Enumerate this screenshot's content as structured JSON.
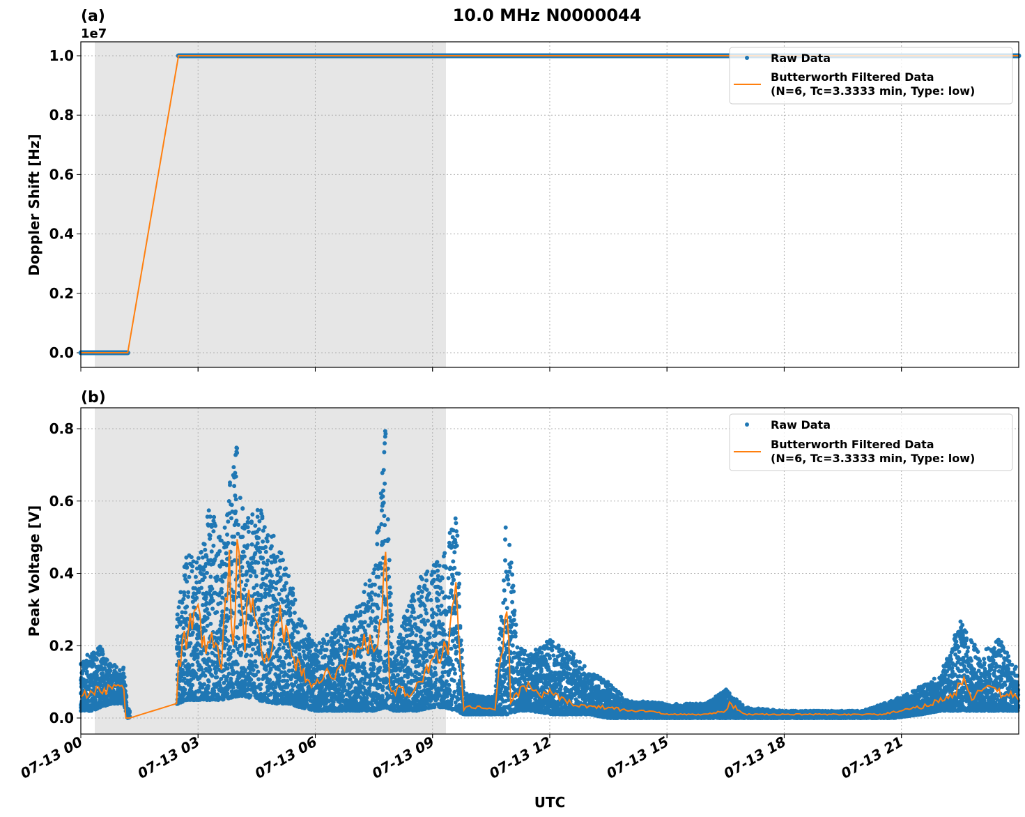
{
  "figure": {
    "title": "10.0 MHz N0000044",
    "xlabel": "UTC",
    "colors": {
      "raw": "#1f77b4",
      "filtered": "#ff7f0e",
      "shade": "#e6e6e6",
      "grid": "#b0b0b0"
    },
    "shaded_region_hours": [
      0.35,
      9.35
    ]
  },
  "chart_data": [
    {
      "panel_label": "(a)",
      "type": "line",
      "title": "",
      "xlabel": "",
      "ylabel": "Doppler Shift [Hz]",
      "y_offset_text": "1e7",
      "ylim": [
        -0.05,
        1.05
      ],
      "yticks": [
        "0.0",
        "0.2",
        "0.4",
        "0.6",
        "0.8",
        "1.0"
      ],
      "xticks": [
        "07-13 00",
        "07-13 03",
        "07-13 06",
        "07-13 09",
        "07-13 12",
        "07-13 15",
        "07-13 18",
        "07-13 21"
      ],
      "xlim_hours": [
        0,
        24
      ],
      "grid": true,
      "legend": {
        "position": "upper right",
        "entries": [
          "Raw Data",
          "Butterworth Filtered Data\n(N=6, Tc=3.3333 min, Type: low)"
        ]
      },
      "series": [
        {
          "name": "Raw Data",
          "kind": "scatter",
          "x_hours": [
            0,
            1.2,
            2.5,
            24
          ],
          "values": [
            0,
            0,
            1.0,
            1.0
          ],
          "note": "segment 0-1.2h at 0, gap 1.2-2.5h, 2.5-24h at 1e7"
        },
        {
          "name": "Butterworth Filtered Data",
          "kind": "line",
          "x_hours": [
            0,
            1.2,
            2.5,
            24
          ],
          "values": [
            0,
            0,
            1.0,
            1.0
          ]
        }
      ]
    },
    {
      "panel_label": "(b)",
      "type": "scatter",
      "title": "",
      "xlabel": "UTC",
      "ylabel": "Peak Voltage [V]",
      "ylim": [
        -0.045,
        0.86
      ],
      "yticks": [
        "0.0",
        "0.2",
        "0.4",
        "0.6",
        "0.8"
      ],
      "xticks": [
        "07-13 00",
        "07-13 03",
        "07-13 06",
        "07-13 09",
        "07-13 12",
        "07-13 15",
        "07-13 18",
        "07-13 21"
      ],
      "xlim_hours": [
        0,
        24
      ],
      "grid": true,
      "legend": {
        "position": "upper right",
        "entries": [
          "Raw Data",
          "Butterworth Filtered Data\n(N=6, Tc=3.3333 min, Type: low)"
        ]
      },
      "series": [
        {
          "name": "Raw Data (envelope)",
          "kind": "scatter",
          "x_hours": [
            0.0,
            0.3,
            0.5,
            0.8,
            1.1,
            1.2,
            2.5,
            2.7,
            3.0,
            3.3,
            3.6,
            4.0,
            4.2,
            4.5,
            5.0,
            5.3,
            5.6,
            6.0,
            6.5,
            7.0,
            7.5,
            7.8,
            8.0,
            8.3,
            8.6,
            9.0,
            9.3,
            9.6,
            9.8,
            10.2,
            10.6,
            10.9,
            11.2,
            11.5,
            12.0,
            12.5,
            13.0,
            13.5,
            14.0,
            15.0,
            16.0,
            16.5,
            17.0,
            18.0,
            19.0,
            20.0,
            20.8,
            21.5,
            22.0,
            22.5,
            23.0,
            23.5,
            24.0
          ],
          "upper": [
            0.17,
            0.18,
            0.2,
            0.15,
            0.14,
            0.02,
            0.3,
            0.48,
            0.45,
            0.6,
            0.5,
            0.78,
            0.55,
            0.6,
            0.5,
            0.42,
            0.28,
            0.2,
            0.25,
            0.3,
            0.43,
            0.81,
            0.15,
            0.3,
            0.38,
            0.42,
            0.45,
            0.62,
            0.07,
            0.06,
            0.06,
            0.58,
            0.2,
            0.18,
            0.22,
            0.19,
            0.13,
            0.1,
            0.05,
            0.04,
            0.04,
            0.08,
            0.03,
            0.02,
            0.02,
            0.02,
            0.05,
            0.09,
            0.12,
            0.27,
            0.18,
            0.22,
            0.13
          ],
          "lower": [
            0.02,
            0.02,
            0.03,
            0.04,
            0.04,
            0.0,
            0.04,
            0.05,
            0.05,
            0.05,
            0.05,
            0.06,
            0.06,
            0.05,
            0.04,
            0.04,
            0.03,
            0.02,
            0.02,
            0.02,
            0.02,
            0.03,
            0.02,
            0.02,
            0.02,
            0.03,
            0.03,
            0.02,
            0.01,
            0.01,
            0.01,
            0.01,
            0.02,
            0.02,
            0.01,
            0.01,
            0.01,
            0.0,
            0.0,
            0.0,
            0.0,
            0.0,
            0.0,
            0.0,
            0.0,
            0.0,
            0.0,
            0.01,
            0.02,
            0.02,
            0.02,
            0.02,
            0.02
          ]
        },
        {
          "name": "Butterworth Filtered Data",
          "kind": "line",
          "x_hours": [
            0.0,
            0.2,
            0.4,
            0.6,
            0.8,
            1.0,
            1.1,
            1.15,
            1.25,
            2.45,
            2.5,
            2.6,
            2.8,
            3.0,
            3.2,
            3.4,
            3.6,
            3.8,
            3.9,
            4.0,
            4.2,
            4.3,
            4.5,
            4.7,
            4.9,
            5.1,
            5.3,
            5.5,
            5.7,
            5.9,
            6.1,
            6.4,
            6.7,
            7.0,
            7.2,
            7.4,
            7.6,
            7.8,
            7.9,
            8.0,
            8.2,
            8.4,
            8.6,
            8.8,
            9.0,
            9.2,
            9.4,
            9.6,
            9.7,
            9.8,
            9.85,
            10.0,
            10.3,
            10.6,
            10.8,
            10.9,
            11.0,
            11.2,
            11.5,
            11.8,
            12.0,
            12.3,
            12.6,
            13.0,
            13.5,
            14.0,
            14.5,
            15.0,
            15.5,
            16.0,
            16.5,
            16.6,
            17.0,
            18.0,
            19.0,
            20.0,
            20.5,
            21.0,
            21.5,
            22.0,
            22.3,
            22.5,
            22.6,
            22.8,
            23.0,
            23.2,
            23.4,
            23.6,
            23.8,
            24.0
          ],
          "values": [
            0.06,
            0.07,
            0.08,
            0.07,
            0.09,
            0.1,
            0.08,
            0.0,
            0.0,
            0.04,
            0.14,
            0.2,
            0.25,
            0.27,
            0.2,
            0.22,
            0.15,
            0.43,
            0.18,
            0.5,
            0.2,
            0.35,
            0.25,
            0.18,
            0.2,
            0.28,
            0.2,
            0.15,
            0.12,
            0.1,
            0.11,
            0.12,
            0.15,
            0.18,
            0.2,
            0.21,
            0.18,
            0.44,
            0.1,
            0.07,
            0.08,
            0.06,
            0.09,
            0.12,
            0.15,
            0.18,
            0.2,
            0.33,
            0.16,
            0.02,
            0.03,
            0.03,
            0.03,
            0.02,
            0.22,
            0.33,
            0.05,
            0.07,
            0.09,
            0.06,
            0.07,
            0.05,
            0.04,
            0.03,
            0.03,
            0.02,
            0.02,
            0.01,
            0.01,
            0.01,
            0.02,
            0.04,
            0.01,
            0.01,
            0.01,
            0.01,
            0.01,
            0.02,
            0.03,
            0.05,
            0.06,
            0.09,
            0.12,
            0.05,
            0.07,
            0.09,
            0.08,
            0.06,
            0.07,
            0.05
          ]
        }
      ]
    }
  ]
}
